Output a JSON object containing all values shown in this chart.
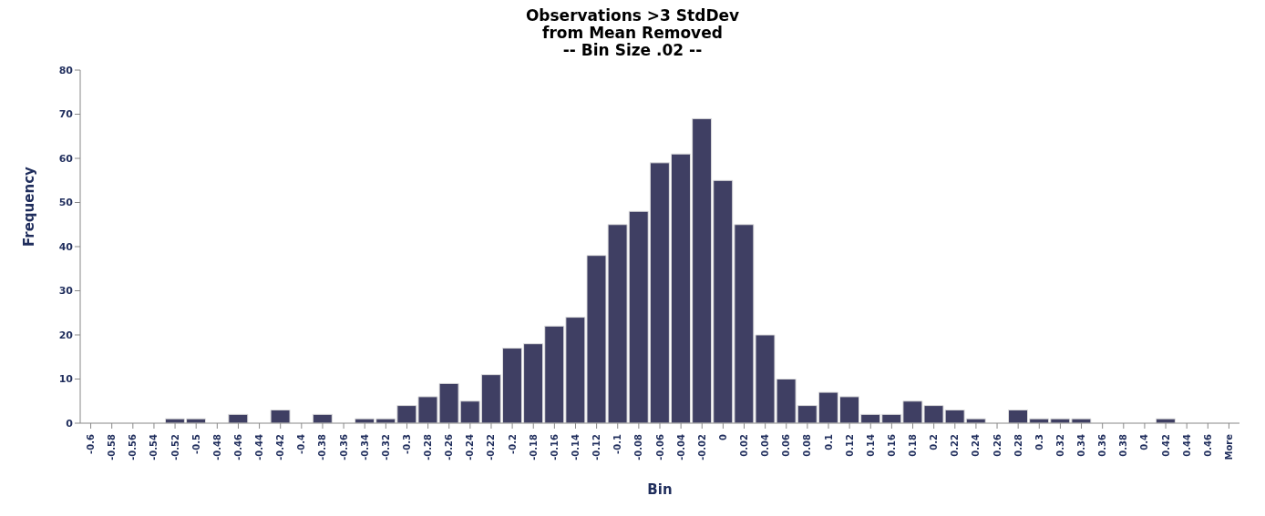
{
  "chart_data": {
    "type": "bar",
    "title": "Observations >3 StdDev\nfrom Mean Removed\n-- Bin Size .02 --",
    "xlabel": "Bin",
    "ylabel": "Frequency",
    "categories": [
      "-0.6",
      "-0.58",
      "-0.56",
      "-0.54",
      "-0.52",
      "-0.5",
      "-0.48",
      "-0.46",
      "-0.44",
      "-0.42",
      "-0.4",
      "-0.38",
      "-0.36",
      "-0.34",
      "-0.32",
      "-0.3",
      "-0.28",
      "-0.26",
      "-0.24",
      "-0.22",
      "-0.2",
      "-0.18",
      "-0.16",
      "-0.14",
      "-0.12",
      "-0.1",
      "-0.08",
      "-0.06",
      "-0.04",
      "-0.02",
      "0",
      "0.02",
      "0.04",
      "0.06",
      "0.08",
      "0.1",
      "0.12",
      "0.14",
      "0.16",
      "0.18",
      "0.2",
      "0.22",
      "0.24",
      "0.26",
      "0.28",
      "0.3",
      "0.32",
      "0.34",
      "0.36",
      "0.38",
      "0.4",
      "0.42",
      "0.44",
      "0.46",
      "More"
    ],
    "values": [
      0,
      0,
      0,
      0,
      1,
      1,
      0,
      2,
      0,
      3,
      0,
      2,
      0,
      1,
      1,
      4,
      6,
      9,
      5,
      11,
      17,
      18,
      22,
      24,
      38,
      45,
      48,
      59,
      61,
      69,
      55,
      45,
      20,
      10,
      4,
      7,
      6,
      2,
      2,
      5,
      4,
      3,
      1,
      0,
      3,
      1,
      1,
      1,
      0,
      0,
      0,
      1,
      0,
      0,
      0
    ],
    "color": "#3f3f63",
    "ylim": [
      0,
      80
    ],
    "yticks": [
      0,
      10,
      20,
      30,
      40,
      50,
      60,
      70,
      80
    ],
    "grid": false,
    "legend": false
  }
}
